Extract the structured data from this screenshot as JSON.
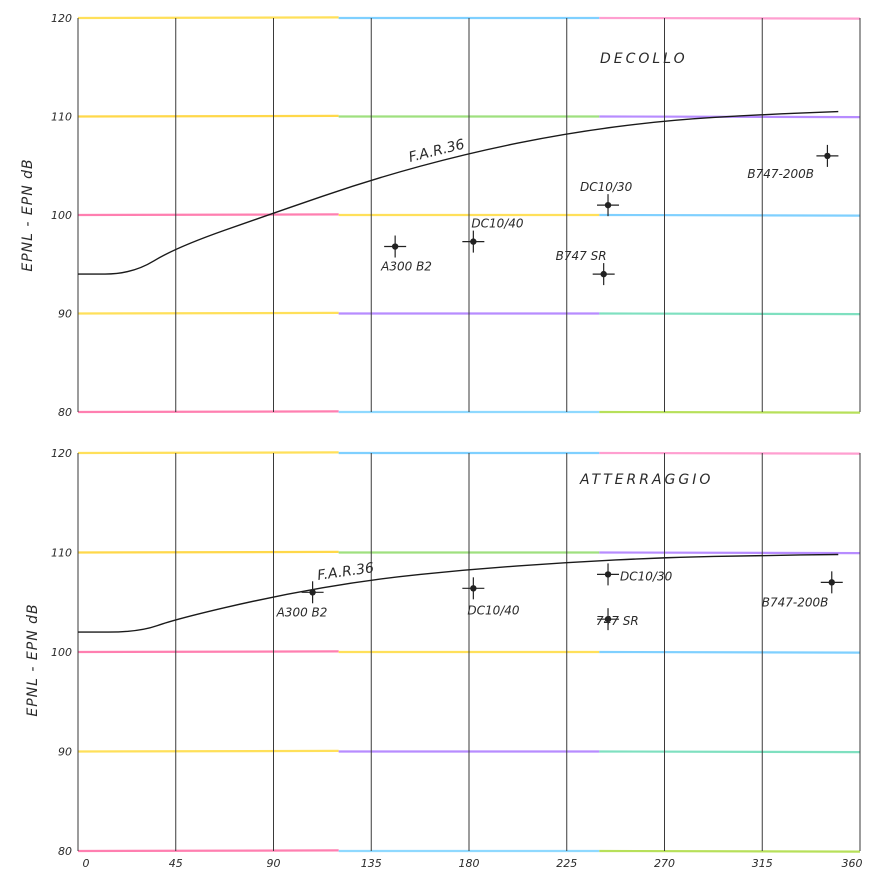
{
  "chart_data": [
    {
      "type": "scatter",
      "title": "DECOLLO",
      "ylabel": "EPNL - EPN dB",
      "xlim": [
        0,
        360
      ],
      "ylim": [
        80,
        120
      ],
      "y_ticks": [
        "80",
        "90",
        "100",
        "110",
        "120"
      ],
      "grid": true,
      "curve_label": "F.A.R.36",
      "curve": [
        [
          0,
          94
        ],
        [
          25,
          94
        ],
        [
          45,
          96.7
        ],
        [
          90,
          100.2
        ],
        [
          135,
          103.6
        ],
        [
          180,
          106.3
        ],
        [
          225,
          108.3
        ],
        [
          270,
          109.6
        ],
        [
          315,
          110.2
        ],
        [
          350,
          110.5
        ]
      ],
      "points": [
        {
          "label": "A300 B2",
          "x": 146,
          "y": 96.8
        },
        {
          "label": "DC10/40",
          "x": 182,
          "y": 97.3
        },
        {
          "label": "DC10/30",
          "x": 244,
          "y": 101
        },
        {
          "label": "B747 SR",
          "x": 242,
          "y": 94
        },
        {
          "label": "B747-200B",
          "x": 345,
          "y": 106
        }
      ]
    },
    {
      "type": "scatter",
      "title": "ATTERRAGGIO",
      "xlabel": "",
      "ylabel": "EPNL - EPN dB",
      "xlim": [
        0,
        360
      ],
      "ylim": [
        80,
        120
      ],
      "x_ticks": [
        "0",
        "45",
        "90",
        "135",
        "180",
        "225",
        "270",
        "315",
        "360"
      ],
      "y_ticks": [
        "80",
        "90",
        "100",
        "110",
        "120"
      ],
      "grid": true,
      "curve_label": "F.A.R.36",
      "curve": [
        [
          0,
          102
        ],
        [
          28,
          102
        ],
        [
          45,
          103.3
        ],
        [
          90,
          105.6
        ],
        [
          135,
          107.3
        ],
        [
          180,
          108.3
        ],
        [
          225,
          109
        ],
        [
          270,
          109.5
        ],
        [
          315,
          109.7
        ],
        [
          350,
          109.8
        ]
      ],
      "points": [
        {
          "label": "A300 B2",
          "x": 108,
          "y": 106
        },
        {
          "label": "DC10/40",
          "x": 182,
          "y": 106.4
        },
        {
          "label": "DC10/30",
          "x": 244,
          "y": 107.8
        },
        {
          "label": "747 SR",
          "x": 244,
          "y": 103.3
        },
        {
          "label": "B747-200B",
          "x": 347,
          "y": 107
        }
      ]
    }
  ]
}
